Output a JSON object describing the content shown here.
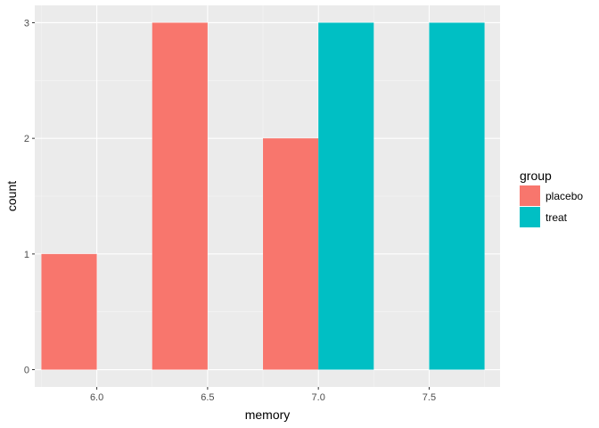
{
  "chart_data": {
    "type": "bar",
    "xlabel": "memory",
    "ylabel": "count",
    "x_ticks": [
      "6.0",
      "6.5",
      "7.0",
      "7.5"
    ],
    "y_ticks": [
      "0",
      "1",
      "2",
      "3"
    ],
    "xlim": [
      5.72,
      7.82
    ],
    "ylim": [
      -0.15,
      3.15
    ],
    "bar_width": 0.25,
    "grid": true,
    "legend": {
      "title": "group",
      "position": "right",
      "entries": [
        {
          "name": "placebo",
          "color": "#F8766D"
        },
        {
          "name": "treat",
          "color": "#00BFC4"
        }
      ]
    },
    "series": [
      {
        "name": "placebo",
        "color": "#F8766D",
        "bars": [
          {
            "x": 5.875,
            "count": 1
          },
          {
            "x": 6.375,
            "count": 3
          },
          {
            "x": 6.875,
            "count": 2
          }
        ]
      },
      {
        "name": "treat",
        "color": "#00BFC4",
        "bars": [
          {
            "x": 7.125,
            "count": 3
          },
          {
            "x": 7.625,
            "count": 3
          }
        ]
      }
    ],
    "colors": {
      "panel": "#EBEBEB",
      "grid_major": "#FFFFFF",
      "grid_minor": "#F5F5F5",
      "tick": "#333333"
    }
  }
}
